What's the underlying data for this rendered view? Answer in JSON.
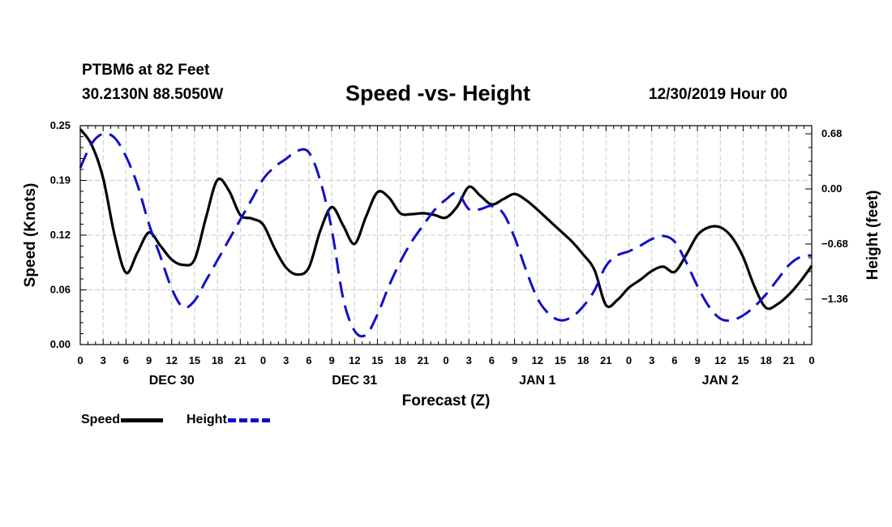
{
  "header": {
    "station": "PTBM6 at 82 Feet",
    "coords": "30.2130N 88.5050W",
    "title": "Speed -vs- Height",
    "run": "12/30/2019 Hour 00"
  },
  "chart_data": {
    "type": "line",
    "title": "Speed -vs- Height",
    "xlabel": "Forecast (Z)",
    "ylabel_left": "Speed (Knots)",
    "ylabel_right": "Height (feet)",
    "x_range": [
      0,
      96
    ],
    "ylim_left": [
      0,
      0.25
    ],
    "ylim_right": [
      -1.92,
      0.78
    ],
    "yticks_left": [
      {
        "value": 0,
        "label": "0.00"
      },
      {
        "value": 0.0625,
        "label": "0.06"
      },
      {
        "value": 0.125,
        "label": "0.12"
      },
      {
        "value": 0.1875,
        "label": "0.19"
      },
      {
        "value": 0.25,
        "label": "0.25"
      }
    ],
    "yticks_right": [
      {
        "value": 0.68,
        "label": "0.68"
      },
      {
        "value": 0.0,
        "label": "0.00"
      },
      {
        "value": -0.68,
        "label": "−0.68"
      },
      {
        "value": -1.36,
        "label": "−1.36"
      }
    ],
    "xtick_labels": [
      "0",
      "3",
      "6",
      "9",
      "12",
      "15",
      "18",
      "21",
      "0",
      "3",
      "6",
      "9",
      "12",
      "15",
      "18",
      "21",
      "0",
      "3",
      "6",
      "9",
      "12",
      "15",
      "18",
      "21",
      "0",
      "3",
      "6",
      "9",
      "12",
      "15",
      "18",
      "21",
      "0"
    ],
    "day_labels": [
      {
        "hour": 12,
        "label": "DEC 30"
      },
      {
        "hour": 36,
        "label": "DEC 31"
      },
      {
        "hour": 60,
        "label": "JAN 1"
      },
      {
        "hour": 84,
        "label": "JAN 2"
      }
    ],
    "grid": true,
    "legend_position": "bottom-left",
    "series": [
      {
        "name": "Speed",
        "axis": "left",
        "color": "#000000",
        "style": "solid",
        "points": [
          [
            0,
            0.246
          ],
          [
            1.5,
            0.228
          ],
          [
            3,
            0.19
          ],
          [
            4.5,
            0.125
          ],
          [
            6,
            0.082
          ],
          [
            7.5,
            0.105
          ],
          [
            9,
            0.128
          ],
          [
            10.5,
            0.113
          ],
          [
            12,
            0.097
          ],
          [
            13.5,
            0.091
          ],
          [
            15,
            0.097
          ],
          [
            16.5,
            0.145
          ],
          [
            18,
            0.188
          ],
          [
            19.5,
            0.176
          ],
          [
            21,
            0.148
          ],
          [
            22.5,
            0.144
          ],
          [
            24,
            0.137
          ],
          [
            25.5,
            0.11
          ],
          [
            27,
            0.088
          ],
          [
            28.5,
            0.08
          ],
          [
            30,
            0.088
          ],
          [
            31.5,
            0.13
          ],
          [
            33,
            0.157
          ],
          [
            34.5,
            0.136
          ],
          [
            36,
            0.115
          ],
          [
            37.5,
            0.146
          ],
          [
            39,
            0.174
          ],
          [
            40.5,
            0.168
          ],
          [
            42,
            0.15
          ],
          [
            43.5,
            0.149
          ],
          [
            45,
            0.15
          ],
          [
            46.5,
            0.148
          ],
          [
            48,
            0.145
          ],
          [
            49.5,
            0.158
          ],
          [
            51,
            0.18
          ],
          [
            52.5,
            0.17
          ],
          [
            54,
            0.16
          ],
          [
            55.5,
            0.166
          ],
          [
            57,
            0.172
          ],
          [
            58.5,
            0.165
          ],
          [
            60,
            0.154
          ],
          [
            61.5,
            0.142
          ],
          [
            63,
            0.13
          ],
          [
            64.5,
            0.118
          ],
          [
            66,
            0.103
          ],
          [
            67.5,
            0.085
          ],
          [
            69,
            0.045
          ],
          [
            70.5,
            0.051
          ],
          [
            72,
            0.065
          ],
          [
            73.5,
            0.074
          ],
          [
            75,
            0.084
          ],
          [
            76.5,
            0.089
          ],
          [
            78,
            0.083
          ],
          [
            79.5,
            0.102
          ],
          [
            81,
            0.125
          ],
          [
            82.5,
            0.134
          ],
          [
            84,
            0.134
          ],
          [
            85.5,
            0.123
          ],
          [
            87,
            0.1
          ],
          [
            88.5,
            0.066
          ],
          [
            90,
            0.042
          ],
          [
            91.5,
            0.046
          ],
          [
            93,
            0.057
          ],
          [
            94.5,
            0.072
          ],
          [
            96,
            0.09
          ]
        ]
      },
      {
        "name": "Height",
        "axis": "right",
        "color": "#1010c8",
        "style": "dashed",
        "points": [
          [
            0,
            0.26
          ],
          [
            1.5,
            0.56
          ],
          [
            3,
            0.68
          ],
          [
            4.5,
            0.63
          ],
          [
            6,
            0.4
          ],
          [
            7.5,
            0.05
          ],
          [
            9,
            -0.43
          ],
          [
            10.5,
            -0.83
          ],
          [
            12,
            -1.23
          ],
          [
            13.5,
            -1.46
          ],
          [
            15,
            -1.38
          ],
          [
            16.5,
            -1.13
          ],
          [
            18,
            -0.88
          ],
          [
            19.5,
            -0.63
          ],
          [
            21,
            -0.38
          ],
          [
            22.5,
            -0.13
          ],
          [
            24,
            0.12
          ],
          [
            25.5,
            0.27
          ],
          [
            27,
            0.37
          ],
          [
            28.5,
            0.47
          ],
          [
            30,
            0.45
          ],
          [
            31.5,
            0.1
          ],
          [
            33,
            -0.5
          ],
          [
            34.5,
            -1.35
          ],
          [
            36,
            -1.75
          ],
          [
            37.5,
            -1.8
          ],
          [
            39,
            -1.55
          ],
          [
            40.5,
            -1.2
          ],
          [
            42,
            -0.9
          ],
          [
            43.5,
            -0.65
          ],
          [
            45,
            -0.45
          ],
          [
            46.5,
            -0.26
          ],
          [
            48,
            -0.13
          ],
          [
            49.5,
            -0.05
          ],
          [
            51,
            -0.25
          ],
          [
            52.5,
            -0.25
          ],
          [
            54,
            -0.21
          ],
          [
            55.5,
            -0.3
          ],
          [
            57,
            -0.6
          ],
          [
            58.5,
            -1.0
          ],
          [
            60,
            -1.35
          ],
          [
            61.5,
            -1.54
          ],
          [
            63,
            -1.62
          ],
          [
            64.5,
            -1.58
          ],
          [
            66,
            -1.45
          ],
          [
            67.5,
            -1.25
          ],
          [
            69,
            -0.95
          ],
          [
            70.5,
            -0.82
          ],
          [
            72,
            -0.77
          ],
          [
            73.5,
            -0.7
          ],
          [
            75,
            -0.62
          ],
          [
            76.5,
            -0.58
          ],
          [
            78,
            -0.65
          ],
          [
            79.5,
            -0.9
          ],
          [
            81,
            -1.2
          ],
          [
            82.5,
            -1.45
          ],
          [
            84,
            -1.6
          ],
          [
            85.5,
            -1.62
          ],
          [
            87,
            -1.56
          ],
          [
            88.5,
            -1.45
          ],
          [
            90,
            -1.3
          ],
          [
            91.5,
            -1.12
          ],
          [
            93,
            -0.94
          ],
          [
            94.5,
            -0.84
          ],
          [
            96,
            -0.82
          ]
        ]
      }
    ]
  },
  "legend": {
    "speed_label": "Speed",
    "height_label": "Height"
  }
}
